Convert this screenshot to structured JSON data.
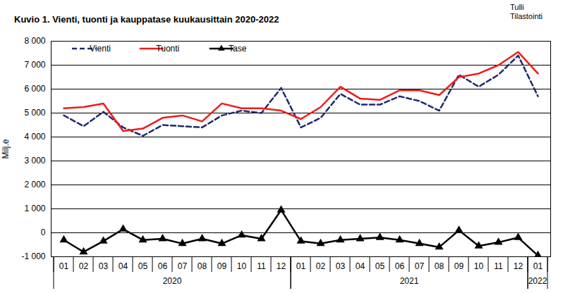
{
  "chart_data": {
    "type": "line",
    "title": "Kuvio  1. Vienti, tuonti ja kauppatase kuukausittain 2020-2022",
    "annotations": [
      "Tulli",
      "Tilastointi"
    ],
    "y_label": "Milj.e",
    "categories": [
      "01",
      "02",
      "03",
      "04",
      "05",
      "06",
      "07",
      "08",
      "09",
      "10",
      "11",
      "12",
      "01",
      "02",
      "03",
      "04",
      "05",
      "06",
      "07",
      "08",
      "09",
      "10",
      "11",
      "12",
      "01"
    ],
    "year_groups": [
      {
        "label": "2020",
        "count": 12
      },
      {
        "label": "2021",
        "count": 12
      },
      {
        "label": "2022",
        "count": 1
      }
    ],
    "ylim": [
      -1000,
      8000
    ],
    "yticks": [
      {
        "value": -1000,
        "label": "-1 000"
      },
      0,
      {
        "value": 1000,
        "label": "1 000"
      },
      {
        "value": 2000,
        "label": "2 000"
      },
      {
        "value": 3000,
        "label": "3 000"
      },
      {
        "value": 4000,
        "label": "4 000"
      },
      {
        "value": 5000,
        "label": "5 000"
      },
      {
        "value": 6000,
        "label": "6 000"
      },
      {
        "value": 7000,
        "label": "7 000"
      },
      {
        "value": 8000,
        "label": "8 000"
      }
    ],
    "grid": true,
    "legend": "top-left",
    "series": [
      {
        "name": "Vienti",
        "color": "#1f2a6b",
        "line_style": "dashed",
        "values": [
          4900,
          4450,
          5050,
          4400,
          4050,
          4500,
          4450,
          4400,
          4900,
          5100,
          5000,
          6050,
          4400,
          4800,
          5800,
          5350,
          5350,
          5700,
          5500,
          5100,
          6600,
          6100,
          6600,
          7400,
          5700
        ]
      },
      {
        "name": "Tuonti",
        "color": "#ee1c1c",
        "line_style": "solid",
        "values": [
          5200,
          5250,
          5400,
          4250,
          4350,
          4800,
          4900,
          4650,
          5400,
          5200,
          5200,
          5100,
          4750,
          5250,
          6100,
          5600,
          5550,
          5950,
          5950,
          5750,
          6500,
          6650,
          7000,
          7550,
          6650
        ]
      },
      {
        "name": "Tase",
        "color": "#000000",
        "line_style": "solid",
        "marker": "triangle",
        "values": [
          -300,
          -800,
          -350,
          150,
          -300,
          -250,
          -450,
          -250,
          -450,
          -100,
          -250,
          950,
          -350,
          -450,
          -300,
          -250,
          -200,
          -300,
          -450,
          -600,
          100,
          -550,
          -400,
          -200,
          -950
        ]
      }
    ]
  }
}
